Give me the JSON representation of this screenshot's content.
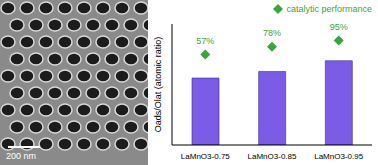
{
  "image": {
    "scale_bar": "200 nm"
  },
  "chart_data": {
    "type": "bar",
    "y_label": "Oads/Olat (atomic ratio)",
    "categories": [
      "LaMnO3-0.75",
      "LaMnO3-0.85",
      "LaMnO3-0.95"
    ],
    "ylim": [
      0,
      2.8
    ],
    "y2lim": [
      -190,
      140
    ],
    "tick_labels": "x",
    "grid": false,
    "legend": "top right",
    "series": [
      {
        "name": "Oads/Olat (atomic ratio)",
        "type": "bar",
        "color": "#7b5ce6",
        "values": [
          1.55,
          1.7,
          1.95
        ]
      },
      {
        "name": "catalytic performance",
        "type": "scatter",
        "marker": "diamond",
        "axis": "y2",
        "color": "#3aa53a",
        "values": [
          57,
          78,
          95
        ],
        "value_labels": [
          "57%",
          "78%",
          "95%"
        ],
        "data_labels": true
      }
    ]
  }
}
